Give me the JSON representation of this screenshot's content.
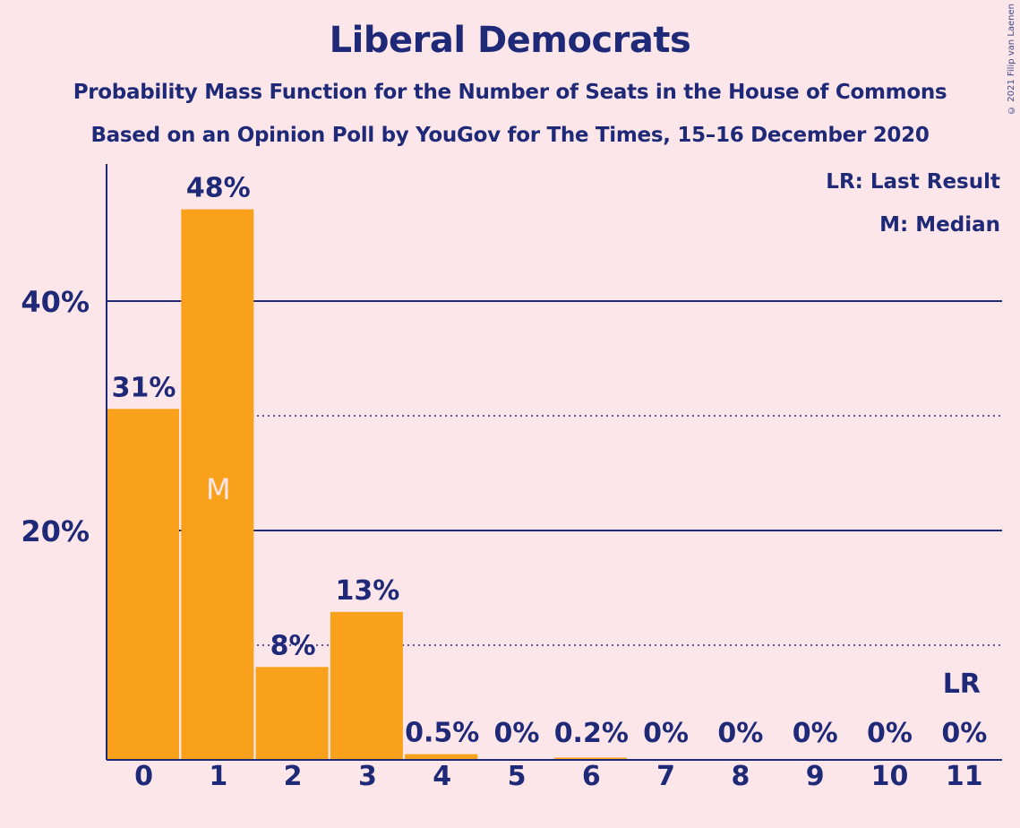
{
  "title": "Liberal Democrats",
  "subtitle": "Probability Mass Function for the Number of Seats in the House of Commons",
  "subtitle2": "Based on an Opinion Poll by YouGov for The Times, 15–16 December 2020",
  "copyright": "© 2021 Filip van Laenen",
  "legend": {
    "lr": "LR: Last Result",
    "median": "M: Median"
  },
  "colors": {
    "background": "#FDE6E9",
    "bar": "#F9A11B",
    "text": "#1E2A78",
    "median_label": "#FDE6E9"
  },
  "chart_data": {
    "type": "bar",
    "categories": [
      "0",
      "1",
      "2",
      "3",
      "4",
      "5",
      "6",
      "7",
      "8",
      "9",
      "10",
      "11"
    ],
    "values": [
      30.6,
      48.0,
      8.1,
      12.9,
      0.5,
      0,
      0.2,
      0,
      0,
      0,
      0,
      0
    ],
    "labels": [
      "31%",
      "48%",
      "8%",
      "13%",
      "0.5%",
      "0%",
      "0.2%",
      "0%",
      "0%",
      "0%",
      "0%",
      "0%"
    ],
    "ylim": [
      0,
      52
    ],
    "yticks": [
      {
        "value": 20,
        "label": "20%"
      },
      {
        "value": 40,
        "label": "40%"
      }
    ],
    "minor_gridlines": [
      10,
      30
    ],
    "median_index": 1,
    "median_marker": "M",
    "last_result_index": 11,
    "last_result_marker": "LR",
    "legend_position": "top-right"
  }
}
